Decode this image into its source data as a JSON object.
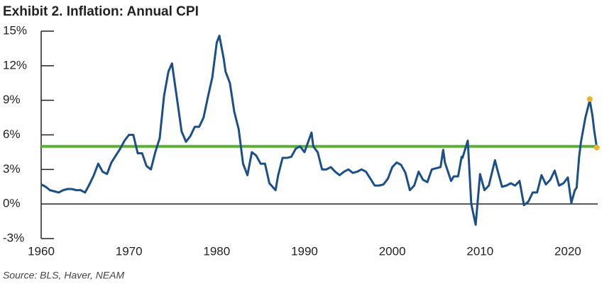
{
  "chart_data": {
    "type": "line",
    "title": "Exhibit 2. Inflation: Annual CPI",
    "source": "Source: BLS, Haver, NEAM",
    "xlim": [
      1960,
      2023.4
    ],
    "xticks": [
      1960,
      1970,
      1980,
      1990,
      2000,
      2010,
      2020
    ],
    "ylim": [
      -3,
      15
    ],
    "yticks": [
      {
        "value": -3,
        "label": "-3%"
      },
      {
        "value": 0,
        "label": "0%"
      },
      {
        "value": 3,
        "label": "3%"
      },
      {
        "value": 6,
        "label": "6%"
      },
      {
        "value": 9,
        "label": "9%"
      },
      {
        "value": 12,
        "label": "12%"
      },
      {
        "value": 15,
        "label": "15%"
      }
    ],
    "series": [
      {
        "color": "#1b4f85",
        "x": [
          1960,
          1960.5,
          1961,
          1961.5,
          1962,
          1962.5,
          1963,
          1963.5,
          1964,
          1964.5,
          1965,
          1965.5,
          1966,
          1966.5,
          1967,
          1967.5,
          1968,
          1968.5,
          1969,
          1969.5,
          1970,
          1970.5,
          1971,
          1971.5,
          1972,
          1972.5,
          1973,
          1973.5,
          1974,
          1974.5,
          1974.9,
          1975.5,
          1976,
          1976.5,
          1977,
          1977.5,
          1978,
          1978.5,
          1979,
          1979.5,
          1980,
          1980.3,
          1980.8,
          1981,
          1981.5,
          1982,
          1982.5,
          1983,
          1983.5,
          1984,
          1984.5,
          1985,
          1985.5,
          1986,
          1986.7,
          1987,
          1987.5,
          1988,
          1988.5,
          1989,
          1989.5,
          1990,
          1990.8,
          1991,
          1991.5,
          1992,
          1992.5,
          1993,
          1993.5,
          1994,
          1994.5,
          1995,
          1995.5,
          1996,
          1996.5,
          1997,
          1997.5,
          1998,
          1998.5,
          1999,
          1999.5,
          2000,
          2000.5,
          2001,
          2001.5,
          2002,
          2002.5,
          2003,
          2003.5,
          2004,
          2004.5,
          2005,
          2005.5,
          2005.8,
          2006,
          2006.7,
          2007,
          2007.5,
          2007.9,
          2008,
          2008.6,
          2009,
          2009.5,
          2010,
          2010.5,
          2011,
          2011.7,
          2012,
          2012.5,
          2013,
          2013.5,
          2014,
          2014.5,
          2015,
          2015.5,
          2016,
          2016.5,
          2017,
          2017.5,
          2018,
          2018.5,
          2019,
          2019.5,
          2020,
          2020.4,
          2020.8,
          2021,
          2021.3,
          2021.5,
          2022,
          2022.5,
          2022.8,
          2023,
          2023.3
        ],
        "values": [
          1.7,
          1.5,
          1.2,
          1.1,
          1.0,
          1.2,
          1.3,
          1.3,
          1.2,
          1.2,
          1.0,
          1.7,
          2.5,
          3.5,
          2.8,
          2.6,
          3.6,
          4.2,
          4.8,
          5.5,
          6.0,
          6.0,
          4.4,
          4.4,
          3.3,
          3.0,
          4.5,
          5.7,
          9.4,
          11.5,
          12.2,
          9.0,
          6.3,
          5.4,
          5.9,
          6.7,
          6.7,
          7.5,
          9.3,
          11.0,
          14.0,
          14.6,
          12.6,
          11.5,
          10.5,
          8.0,
          6.5,
          3.5,
          2.5,
          4.5,
          4.2,
          3.5,
          3.5,
          1.8,
          1.2,
          2.5,
          4.0,
          4.0,
          4.1,
          4.8,
          5.0,
          4.5,
          6.2,
          5.0,
          4.5,
          3.0,
          3.0,
          3.2,
          2.8,
          2.5,
          2.8,
          3.0,
          2.7,
          2.8,
          3.0,
          2.8,
          2.2,
          1.6,
          1.6,
          1.7,
          2.2,
          3.2,
          3.6,
          3.4,
          2.7,
          1.2,
          1.6,
          2.8,
          2.1,
          1.9,
          3.0,
          3.1,
          3.2,
          4.7,
          3.6,
          2.0,
          2.4,
          2.4,
          4.1,
          4.0,
          5.5,
          0.0,
          -1.8,
          2.6,
          1.2,
          1.6,
          3.8,
          2.9,
          1.5,
          1.6,
          1.8,
          1.6,
          2.0,
          -0.1,
          0.2,
          1.0,
          1.0,
          2.5,
          1.7,
          2.1,
          2.9,
          1.6,
          1.8,
          2.3,
          0.1,
          1.2,
          1.4,
          4.2,
          5.4,
          7.5,
          9.0,
          7.7,
          6.4,
          4.9
        ]
      }
    ],
    "reference_line": {
      "value": 5,
      "color": "#5cb135"
    },
    "markers": {
      "x": [
        2022.5,
        2023.3
      ],
      "values": [
        9.1,
        4.9
      ],
      "color": "#f0b323"
    }
  }
}
